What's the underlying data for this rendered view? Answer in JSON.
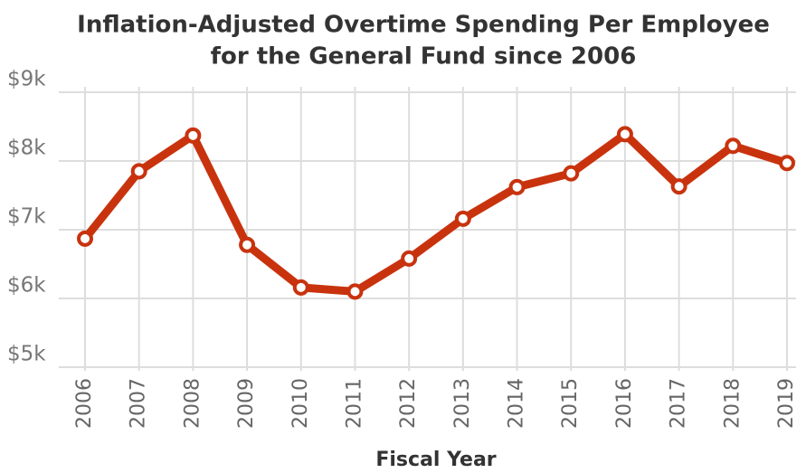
{
  "chart_data": {
    "type": "line",
    "title": "Inflation-Adjusted Overtime Spending Per Employee",
    "subtitle": "for the General Fund since 2006",
    "x_label": "Fiscal Year",
    "categories": [
      "2006",
      "2007",
      "2008",
      "2009",
      "2010",
      "2011",
      "2012",
      "2013",
      "2014",
      "2015",
      "2016",
      "2017",
      "2018",
      "2019"
    ],
    "values": [
      6870,
      7850,
      8370,
      6780,
      6160,
      6100,
      6580,
      7160,
      7620,
      7820,
      8390,
      7630,
      8220,
      7970
    ],
    "color": "#c8330e",
    "ylim": [
      5000,
      9000
    ],
    "yticks": [
      {
        "value": 5000,
        "label": "$5k"
      },
      {
        "value": 6000,
        "label": "$6k"
      },
      {
        "value": 7000,
        "label": "$7k"
      },
      {
        "value": 8000,
        "label": "$8k"
      },
      {
        "value": 9000,
        "label": "$9k"
      }
    ],
    "grid": true
  }
}
